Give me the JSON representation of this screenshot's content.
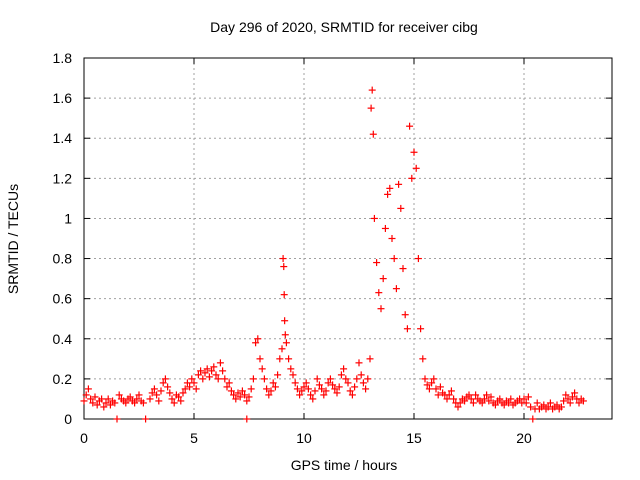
{
  "chart_data": {
    "type": "scatter",
    "title": "Day 296 of 2020, SRMTID for receiver cibg",
    "xlabel": "GPS time / hours",
    "ylabel": "SRMTID / TECUs",
    "xlim": [
      0,
      24
    ],
    "ylim": [
      0,
      1.8
    ],
    "xticks": [
      0,
      5,
      10,
      15,
      20
    ],
    "xtick_labels": [
      "0",
      "5",
      "10",
      "15",
      "20"
    ],
    "yticks": [
      0,
      0.2,
      0.4,
      0.6,
      0.8,
      1.0,
      1.2,
      1.4,
      1.6,
      1.8
    ],
    "ytick_labels": [
      "0",
      "0.2",
      "0.4",
      "0.6",
      "0.8",
      "1",
      "1.2",
      "1.4",
      "1.6",
      "1.8"
    ],
    "grid": true,
    "marker": "+",
    "color": "#ff0000",
    "series": [
      {
        "name": "SRMTID",
        "points": [
          [
            0.0,
            0.09
          ],
          [
            0.1,
            0.12
          ],
          [
            0.2,
            0.15
          ],
          [
            0.3,
            0.1
          ],
          [
            0.4,
            0.08
          ],
          [
            0.5,
            0.11
          ],
          [
            0.6,
            0.07
          ],
          [
            0.7,
            0.09
          ],
          [
            0.8,
            0.1
          ],
          [
            0.9,
            0.06
          ],
          [
            1.0,
            0.08
          ],
          [
            1.1,
            0.1
          ],
          [
            1.2,
            0.07
          ],
          [
            1.3,
            0.09
          ],
          [
            1.4,
            0.08
          ],
          [
            1.6,
            0.12
          ],
          [
            1.7,
            0.1
          ],
          [
            1.8,
            0.09
          ],
          [
            1.9,
            0.08
          ],
          [
            2.0,
            0.1
          ],
          [
            2.1,
            0.11
          ],
          [
            2.2,
            0.09
          ],
          [
            2.3,
            0.08
          ],
          [
            2.4,
            0.1
          ],
          [
            2.5,
            0.12
          ],
          [
            2.6,
            0.09
          ],
          [
            2.7,
            0.08
          ],
          [
            3.0,
            0.1
          ],
          [
            3.1,
            0.13
          ],
          [
            3.2,
            0.15
          ],
          [
            3.3,
            0.12
          ],
          [
            3.4,
            0.09
          ],
          [
            3.5,
            0.14
          ],
          [
            3.6,
            0.18
          ],
          [
            3.7,
            0.2
          ],
          [
            3.8,
            0.16
          ],
          [
            3.9,
            0.13
          ],
          [
            4.0,
            0.1
          ],
          [
            4.1,
            0.08
          ],
          [
            4.2,
            0.12
          ],
          [
            4.3,
            0.11
          ],
          [
            4.4,
            0.09
          ],
          [
            4.5,
            0.13
          ],
          [
            4.6,
            0.15
          ],
          [
            4.7,
            0.18
          ],
          [
            4.8,
            0.16
          ],
          [
            4.9,
            0.2
          ],
          [
            5.0,
            0.18
          ],
          [
            5.1,
            0.15
          ],
          [
            5.2,
            0.22
          ],
          [
            5.3,
            0.24
          ],
          [
            5.4,
            0.2
          ],
          [
            5.5,
            0.23
          ],
          [
            5.6,
            0.25
          ],
          [
            5.7,
            0.21
          ],
          [
            5.8,
            0.24
          ],
          [
            5.9,
            0.26
          ],
          [
            6.0,
            0.22
          ],
          [
            6.1,
            0.2
          ],
          [
            6.2,
            0.28
          ],
          [
            6.3,
            0.24
          ],
          [
            6.4,
            0.2
          ],
          [
            6.5,
            0.16
          ],
          [
            6.6,
            0.18
          ],
          [
            6.7,
            0.14
          ],
          [
            6.8,
            0.12
          ],
          [
            6.9,
            0.1
          ],
          [
            7.0,
            0.13
          ],
          [
            7.1,
            0.11
          ],
          [
            7.2,
            0.14
          ],
          [
            7.3,
            0.12
          ],
          [
            7.4,
            0.09
          ],
          [
            7.5,
            0.11
          ],
          [
            7.6,
            0.15
          ],
          [
            7.7,
            0.2
          ],
          [
            7.8,
            0.38
          ],
          [
            7.9,
            0.4
          ],
          [
            8.0,
            0.3
          ],
          [
            8.1,
            0.25
          ],
          [
            8.2,
            0.2
          ],
          [
            8.3,
            0.15
          ],
          [
            8.4,
            0.12
          ],
          [
            8.5,
            0.14
          ],
          [
            8.6,
            0.18
          ],
          [
            8.7,
            0.16
          ],
          [
            8.8,
            0.22
          ],
          [
            8.9,
            0.3
          ],
          [
            9.0,
            0.35
          ],
          [
            9.05,
            0.8
          ],
          [
            9.08,
            0.76
          ],
          [
            9.1,
            0.62
          ],
          [
            9.12,
            0.49
          ],
          [
            9.15,
            0.42
          ],
          [
            9.2,
            0.38
          ],
          [
            9.3,
            0.3
          ],
          [
            9.4,
            0.25
          ],
          [
            9.5,
            0.22
          ],
          [
            9.6,
            0.18
          ],
          [
            9.7,
            0.15
          ],
          [
            9.8,
            0.12
          ],
          [
            9.9,
            0.14
          ],
          [
            10.0,
            0.16
          ],
          [
            10.1,
            0.18
          ],
          [
            10.2,
            0.15
          ],
          [
            10.3,
            0.12
          ],
          [
            10.4,
            0.1
          ],
          [
            10.5,
            0.14
          ],
          [
            10.6,
            0.2
          ],
          [
            10.7,
            0.17
          ],
          [
            10.8,
            0.15
          ],
          [
            10.9,
            0.12
          ],
          [
            11.0,
            0.14
          ],
          [
            11.1,
            0.18
          ],
          [
            11.2,
            0.2
          ],
          [
            11.3,
            0.17
          ],
          [
            11.4,
            0.15
          ],
          [
            11.5,
            0.13
          ],
          [
            11.6,
            0.16
          ],
          [
            11.7,
            0.22
          ],
          [
            11.8,
            0.25
          ],
          [
            11.9,
            0.2
          ],
          [
            12.0,
            0.18
          ],
          [
            12.1,
            0.14
          ],
          [
            12.2,
            0.12
          ],
          [
            12.3,
            0.16
          ],
          [
            12.4,
            0.2
          ],
          [
            12.5,
            0.28
          ],
          [
            12.6,
            0.22
          ],
          [
            12.7,
            0.18
          ],
          [
            12.8,
            0.15
          ],
          [
            12.9,
            0.2
          ],
          [
            13.0,
            0.3
          ],
          [
            13.05,
            1.55
          ],
          [
            13.1,
            1.64
          ],
          [
            13.15,
            1.42
          ],
          [
            13.2,
            1.0
          ],
          [
            13.3,
            0.78
          ],
          [
            13.4,
            0.63
          ],
          [
            13.5,
            0.55
          ],
          [
            13.6,
            0.7
          ],
          [
            13.7,
            0.95
          ],
          [
            13.8,
            1.12
          ],
          [
            13.9,
            1.15
          ],
          [
            14.0,
            0.9
          ],
          [
            14.1,
            0.8
          ],
          [
            14.2,
            0.65
          ],
          [
            14.3,
            1.17
          ],
          [
            14.4,
            1.05
          ],
          [
            14.5,
            0.75
          ],
          [
            14.6,
            0.52
          ],
          [
            14.7,
            0.45
          ],
          [
            14.8,
            1.46
          ],
          [
            14.9,
            1.2
          ],
          [
            15.0,
            1.33
          ],
          [
            15.1,
            1.25
          ],
          [
            15.2,
            0.8
          ],
          [
            15.3,
            0.45
          ],
          [
            15.4,
            0.3
          ],
          [
            15.5,
            0.2
          ],
          [
            15.6,
            0.17
          ],
          [
            15.7,
            0.15
          ],
          [
            15.8,
            0.18
          ],
          [
            15.9,
            0.2
          ],
          [
            16.0,
            0.15
          ],
          [
            16.1,
            0.12
          ],
          [
            16.2,
            0.16
          ],
          [
            16.3,
            0.13
          ],
          [
            16.4,
            0.12
          ],
          [
            16.5,
            0.1
          ],
          [
            16.6,
            0.12
          ],
          [
            16.7,
            0.14
          ],
          [
            16.8,
            0.1
          ],
          [
            16.9,
            0.08
          ],
          [
            17.0,
            0.06
          ],
          [
            17.1,
            0.08
          ],
          [
            17.2,
            0.1
          ],
          [
            17.3,
            0.09
          ],
          [
            17.4,
            0.11
          ],
          [
            17.5,
            0.12
          ],
          [
            17.6,
            0.1
          ],
          [
            17.7,
            0.08
          ],
          [
            17.8,
            0.12
          ],
          [
            17.9,
            0.1
          ],
          [
            18.0,
            0.09
          ],
          [
            18.1,
            0.08
          ],
          [
            18.2,
            0.1
          ],
          [
            18.3,
            0.12
          ],
          [
            18.4,
            0.09
          ],
          [
            18.5,
            0.11
          ],
          [
            18.6,
            0.08
          ],
          [
            18.7,
            0.07
          ],
          [
            18.8,
            0.09
          ],
          [
            18.9,
            0.1
          ],
          [
            19.0,
            0.08
          ],
          [
            19.1,
            0.07
          ],
          [
            19.2,
            0.09
          ],
          [
            19.3,
            0.08
          ],
          [
            19.4,
            0.1
          ],
          [
            19.5,
            0.07
          ],
          [
            19.6,
            0.08
          ],
          [
            19.7,
            0.09
          ],
          [
            19.8,
            0.1
          ],
          [
            19.9,
            0.08
          ],
          [
            20.0,
            0.1
          ],
          [
            20.1,
            0.08
          ],
          [
            20.2,
            0.11
          ],
          [
            20.3,
            0.06
          ],
          [
            20.5,
            0.05
          ],
          [
            20.6,
            0.08
          ],
          [
            20.7,
            0.05
          ],
          [
            20.8,
            0.06
          ],
          [
            20.9,
            0.07
          ],
          [
            21.0,
            0.05
          ],
          [
            21.1,
            0.06
          ],
          [
            21.2,
            0.08
          ],
          [
            21.3,
            0.05
          ],
          [
            21.4,
            0.06
          ],
          [
            21.5,
            0.07
          ],
          [
            21.6,
            0.05
          ],
          [
            21.7,
            0.06
          ],
          [
            21.8,
            0.09
          ],
          [
            21.9,
            0.12
          ],
          [
            22.0,
            0.1
          ],
          [
            22.1,
            0.08
          ],
          [
            22.2,
            0.11
          ],
          [
            22.3,
            0.13
          ],
          [
            22.4,
            0.1
          ],
          [
            22.5,
            0.08
          ],
          [
            22.6,
            0.1
          ],
          [
            22.7,
            0.09
          ],
          [
            1.5,
            0.0
          ],
          [
            2.8,
            0.0
          ],
          [
            7.4,
            0.0
          ],
          [
            20.4,
            0.0
          ]
        ]
      }
    ]
  }
}
